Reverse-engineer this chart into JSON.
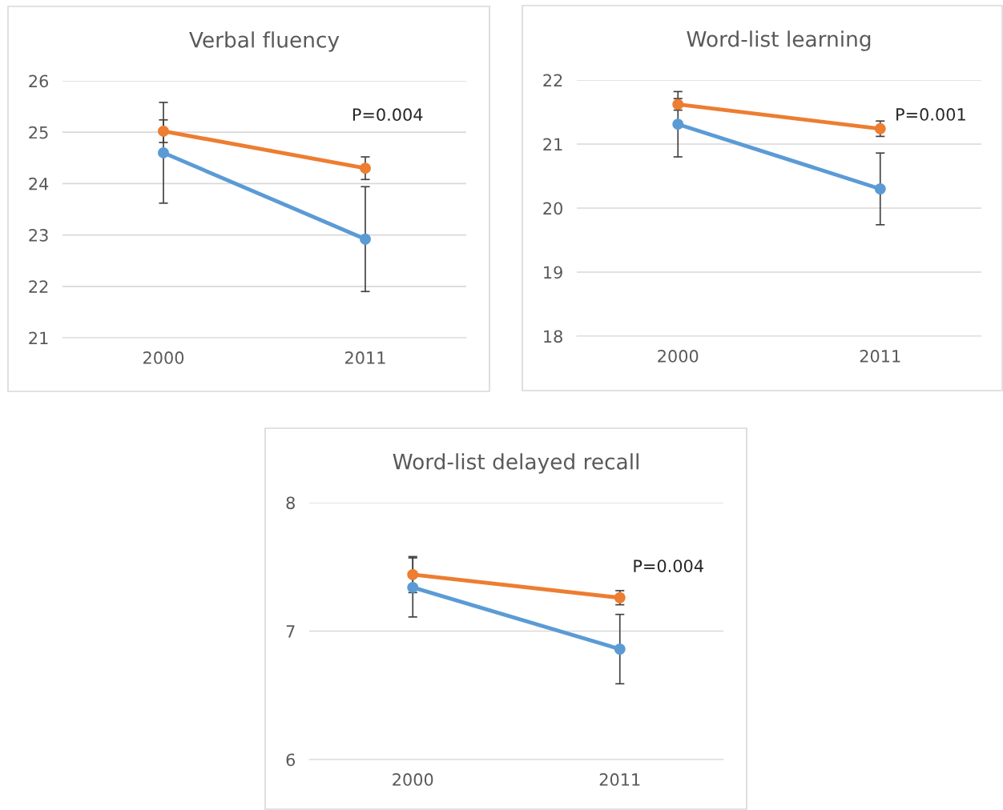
{
  "chart_data": [
    {
      "type": "line",
      "title": "Verbal fluency",
      "categories": [
        "2000",
        "2011"
      ],
      "ylim": [
        21,
        26
      ],
      "yticks": [
        21,
        22,
        23,
        24,
        25,
        26
      ],
      "grid": "y",
      "marker": "circle",
      "line_style": "solid",
      "legend": false,
      "series": [
        {
          "color": "#5b9bd5",
          "values": [
            24.6,
            22.92
          ],
          "errors": [
            0.98,
            1.02
          ]
        },
        {
          "color": "#ed7d31",
          "values": [
            25.02,
            24.3
          ],
          "errors": [
            0.22,
            0.22
          ]
        }
      ],
      "annotations": [
        "P=0.004"
      ]
    },
    {
      "type": "line",
      "title": "Word-list learning",
      "categories": [
        "2000",
        "2011"
      ],
      "ylim": [
        18,
        22
      ],
      "yticks": [
        18,
        19,
        20,
        21,
        22
      ],
      "grid": "y",
      "marker": "circle",
      "line_style": "solid",
      "legend": false,
      "series": [
        {
          "color": "#5b9bd5",
          "values": [
            21.31,
            20.3
          ],
          "errors": [
            0.51,
            0.56
          ]
        },
        {
          "color": "#ed7d31",
          "values": [
            21.62,
            21.24
          ],
          "errors": [
            0.09,
            0.12
          ]
        }
      ],
      "annotations": [
        "P=0.001"
      ]
    },
    {
      "type": "line",
      "title": "Word-list delayed recall",
      "categories": [
        "2000",
        "2011"
      ],
      "ylim": [
        6,
        8
      ],
      "yticks": [
        6,
        7,
        8
      ],
      "grid": "y",
      "marker": "circle",
      "line_style": "solid",
      "legend": false,
      "series": [
        {
          "color": "#5b9bd5",
          "values": [
            7.34,
            6.86
          ],
          "errors": [
            0.23,
            0.27
          ]
        },
        {
          "color": "#ed7d31",
          "values": [
            7.44,
            7.26
          ],
          "errors": [
            0.14,
            0.055
          ]
        }
      ],
      "annotations": [
        "P=0.004"
      ]
    }
  ]
}
